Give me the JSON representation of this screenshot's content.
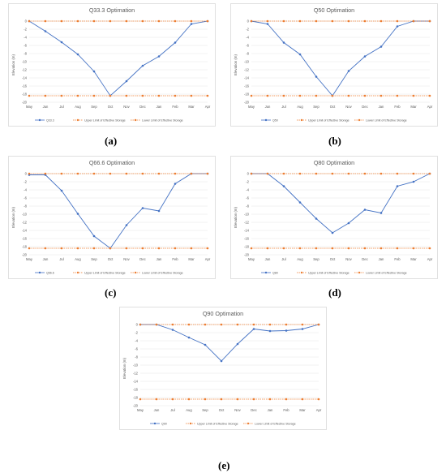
{
  "colors": {
    "main_series": "#4472c4",
    "limits": "#ed7d31"
  },
  "chart_data": [
    {
      "type": "line",
      "title": "Q33.3 Optimation",
      "ylabel": "Elevation (m)",
      "categories": [
        "May",
        "Jun",
        "Jul",
        "Aug",
        "Sep",
        "Oct",
        "Nov",
        "Dec",
        "Jan",
        "Feb",
        "Mar",
        "Apr"
      ],
      "ylim": [
        -20,
        0
      ],
      "yticks": [
        0,
        -2,
        -4,
        -6,
        -8,
        -10,
        -12,
        -14,
        -16,
        -18,
        -20
      ],
      "grid": true,
      "legend_position": "bottom",
      "series": [
        {
          "name": "Q33.3",
          "values": [
            0,
            -2.5,
            -5.2,
            -8.2,
            -12.4,
            -18.4,
            -14.8,
            -11,
            -8.7,
            -5.3,
            -0.7,
            0
          ]
        },
        {
          "name": "Upper Limit of Effective Storage",
          "values": [
            0,
            0,
            0,
            0,
            0,
            0,
            0,
            0,
            0,
            0,
            0,
            0
          ]
        },
        {
          "name": "Lower Limit of Effective Storage",
          "values": [
            -18.4,
            -18.4,
            -18.4,
            -18.4,
            -18.4,
            -18.4,
            -18.4,
            -18.4,
            -18.4,
            -18.4,
            -18.4,
            -18.4
          ]
        }
      ],
      "caption": "(a)"
    },
    {
      "type": "line",
      "title": "Q50 Optimation",
      "ylabel": "Elevation (m)",
      "categories": [
        "May",
        "Jun",
        "Jul",
        "Aug",
        "Sep",
        "Oct",
        "Nov",
        "Dec",
        "Jan",
        "Feb",
        "Mar",
        "Apr"
      ],
      "ylim": [
        -20,
        0
      ],
      "yticks": [
        0,
        -2,
        -4,
        -6,
        -8,
        -10,
        -12,
        -14,
        -16,
        -18,
        -20
      ],
      "grid": true,
      "legend_position": "bottom",
      "series": [
        {
          "name": "Q50",
          "values": [
            0,
            -0.7,
            -5.3,
            -8.2,
            -13.7,
            -18.4,
            -12.3,
            -8.7,
            -6.3,
            -1.3,
            0,
            0
          ]
        },
        {
          "name": "Upper Limit of Effective Storage",
          "values": [
            0,
            0,
            0,
            0,
            0,
            0,
            0,
            0,
            0,
            0,
            0,
            0
          ]
        },
        {
          "name": "Lower Limit of Effective Storage",
          "values": [
            -18.4,
            -18.4,
            -18.4,
            -18.4,
            -18.4,
            -18.4,
            -18.4,
            -18.4,
            -18.4,
            -18.4,
            -18.4,
            -18.4
          ]
        }
      ],
      "caption": "(b)"
    },
    {
      "type": "line",
      "title": "Q66.6 Optimation",
      "ylabel": "Elevation (m)",
      "categories": [
        "May",
        "Jun",
        "Jul",
        "Aug",
        "Sep",
        "Oct",
        "Nov",
        "Dec",
        "Jan",
        "Feb",
        "Mar",
        "Apr"
      ],
      "ylim": [
        -20,
        0
      ],
      "yticks": [
        0,
        -2,
        -4,
        -6,
        -8,
        -10,
        -12,
        -14,
        -16,
        -18,
        -20
      ],
      "grid": true,
      "legend_position": "bottom",
      "series": [
        {
          "name": "Q66.6",
          "values": [
            -0.3,
            -0.3,
            -4.2,
            -9.9,
            -15.4,
            -18.4,
            -12.7,
            -8.5,
            -9.2,
            -2.5,
            0,
            0
          ]
        },
        {
          "name": "Upper Limit of Effective Storage",
          "values": [
            0,
            0,
            0,
            0,
            0,
            0,
            0,
            0,
            0,
            0,
            0,
            0
          ]
        },
        {
          "name": "Lower Limit of Effective Storage",
          "values": [
            -18.4,
            -18.4,
            -18.4,
            -18.4,
            -18.4,
            -18.4,
            -18.4,
            -18.4,
            -18.4,
            -18.4,
            -18.4,
            -18.4
          ]
        }
      ],
      "caption": "(c)"
    },
    {
      "type": "line",
      "title": "Q80 Optimation",
      "ylabel": "Elevation (m)",
      "categories": [
        "May",
        "Jun",
        "Jul",
        "Aug",
        "Sep",
        "Oct",
        "Nov",
        "Dec",
        "Jan",
        "Feb",
        "Mar",
        "Apr"
      ],
      "ylim": [
        -20,
        0
      ],
      "yticks": [
        0,
        -2,
        -4,
        -6,
        -8,
        -10,
        -12,
        -14,
        -16,
        -18,
        -20
      ],
      "grid": true,
      "legend_position": "bottom",
      "series": [
        {
          "name": "Q80",
          "values": [
            0,
            0,
            -3.1,
            -7.1,
            -11.1,
            -14.6,
            -12.2,
            -8.9,
            -9.7,
            -3.1,
            -2,
            0
          ]
        },
        {
          "name": "Upper Limit of Effective Storage",
          "values": [
            0,
            0,
            0,
            0,
            0,
            0,
            0,
            0,
            0,
            0,
            0,
            0
          ]
        },
        {
          "name": "Lower Limit of Effective Storage",
          "values": [
            -18.4,
            -18.4,
            -18.4,
            -18.4,
            -18.4,
            -18.4,
            -18.4,
            -18.4,
            -18.4,
            -18.4,
            -18.4,
            -18.4
          ]
        }
      ],
      "caption": "(d)"
    },
    {
      "type": "line",
      "title": "Q90 Optimation",
      "ylabel": "Elevation (m)",
      "categories": [
        "May",
        "Jun",
        "Jul",
        "Aug",
        "Sep",
        "Oct",
        "Nov",
        "Dec",
        "Jan",
        "Feb",
        "Mar",
        "Apr"
      ],
      "ylim": [
        -20,
        0
      ],
      "yticks": [
        0,
        -2,
        -4,
        -6,
        -8,
        -10,
        -12,
        -14,
        -16,
        -18,
        -20
      ],
      "grid": true,
      "legend_position": "bottom",
      "series": [
        {
          "name": "Q90",
          "values": [
            0,
            0,
            -1.3,
            -3.2,
            -5,
            -9,
            -4.8,
            -1.1,
            -1.6,
            -1.5,
            -1.1,
            0
          ]
        },
        {
          "name": "Upper Limit of Effective Storage",
          "values": [
            0,
            0,
            0,
            0,
            0,
            0,
            0,
            0,
            0,
            0,
            0,
            0
          ]
        },
        {
          "name": "Lower Limit of Effective Storage",
          "values": [
            -18.4,
            -18.4,
            -18.4,
            -18.4,
            -18.4,
            -18.4,
            -18.4,
            -18.4,
            -18.4,
            -18.4,
            -18.4,
            -18.4
          ]
        }
      ],
      "caption": "(e)"
    }
  ]
}
